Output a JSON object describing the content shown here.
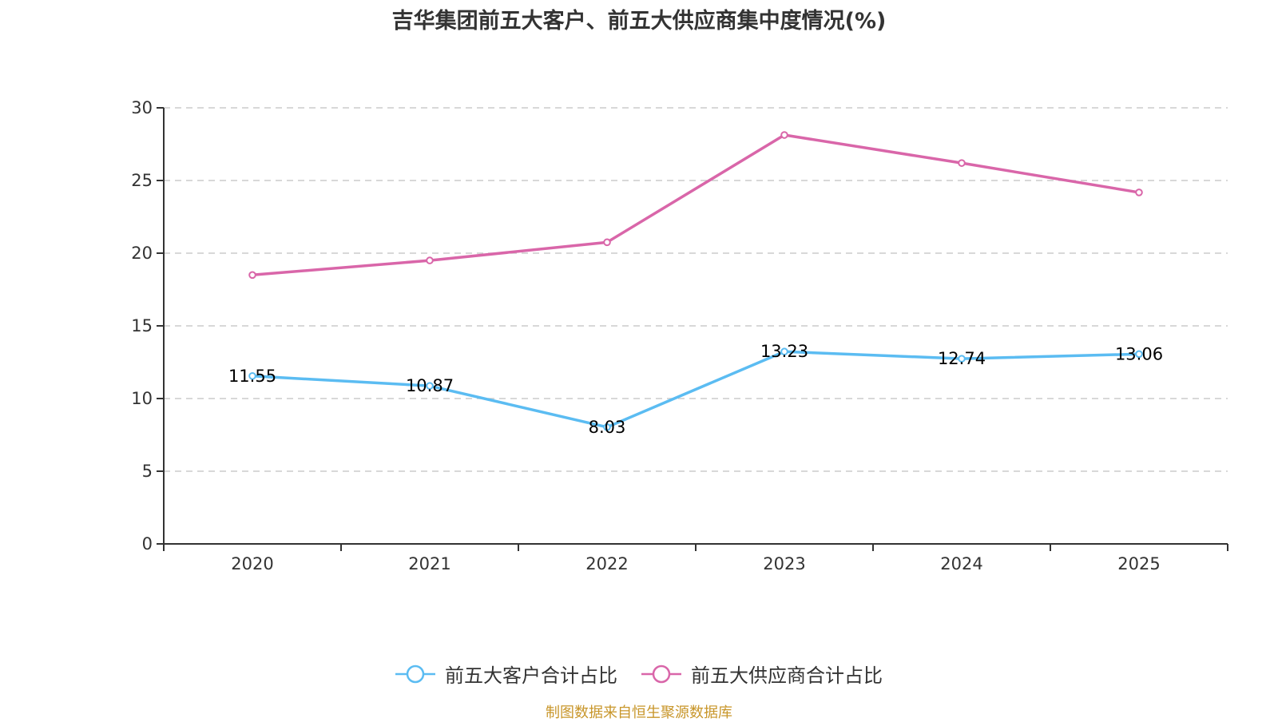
{
  "title": "吉华集团前五大客户、前五大供应商集中度情况(%)",
  "source_note": "制图数据来自恒生聚源数据库",
  "chart_data": {
    "type": "line",
    "title": "吉华集团前五大客户、前五大供应商集中度情况(%)",
    "xlabel": "",
    "ylabel": "",
    "categories": [
      "2020",
      "2021",
      "2022",
      "2023",
      "2024",
      "2025"
    ],
    "ylim": [
      0,
      30
    ],
    "yticks": [
      0,
      5,
      10,
      15,
      20,
      25,
      30
    ],
    "grid": "horizontal dashed",
    "legend_position": "bottom",
    "series": [
      {
        "name": "前五大客户合计占比",
        "color": "#5bbcf2",
        "values": [
          11.55,
          10.87,
          8.03,
          13.23,
          12.74,
          13.06
        ],
        "show_labels": true,
        "labels": [
          "11.55",
          "10.87",
          "8.03",
          "13.23",
          "12.74",
          "13.06"
        ]
      },
      {
        "name": "前五大供应商合计占比",
        "color": "#d966a9",
        "values": [
          18.5,
          19.5,
          20.75,
          28.13,
          26.2,
          24.18
        ],
        "show_labels": false
      }
    ]
  }
}
